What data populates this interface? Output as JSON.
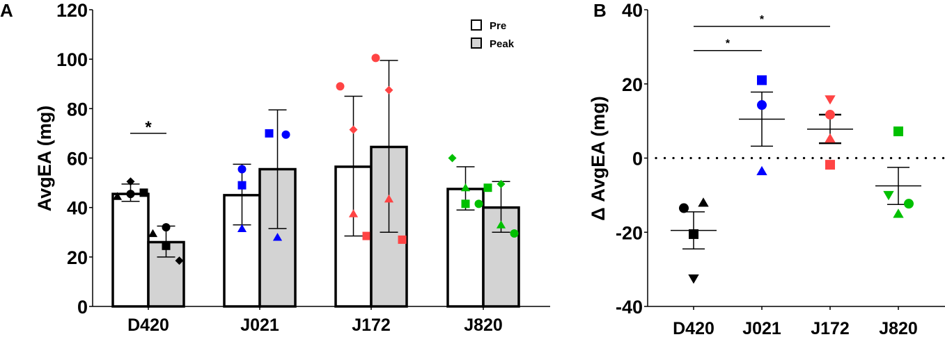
{
  "chart_data": [
    {
      "panel": "A",
      "type": "bar",
      "title": "",
      "xlabel": "",
      "ylabel": "AvgEA (mg)",
      "ylim": [
        0,
        120
      ],
      "yticks": [
        0,
        20,
        40,
        60,
        80,
        100,
        120
      ],
      "categories": [
        "D420",
        "J021",
        "J172",
        "J820"
      ],
      "legend": {
        "position": "top-right",
        "entries": [
          {
            "name": "Pre",
            "fill": "#ffffff"
          },
          {
            "name": "Peak",
            "fill": "#d3d3d3"
          }
        ]
      },
      "series": [
        {
          "name": "Pre",
          "fill": "#ffffff",
          "values": [
            45.5,
            45,
            56.5,
            47.5
          ],
          "error_low": [
            42.5,
            33,
            28.5,
            39
          ],
          "error_high": [
            49.5,
            57.5,
            85,
            56.5
          ],
          "points": [
            [
              {
                "shape": "triangle",
                "y": 44.5
              },
              {
                "shape": "diamond",
                "y": 50.5
              },
              {
                "shape": "circle",
                "y": 45.5
              },
              {
                "shape": "square",
                "y": 46
              }
            ],
            [
              {
                "shape": "circle",
                "y": 55.5
              },
              {
                "shape": "square",
                "y": 49
              },
              {
                "shape": "triangle",
                "y": 31.5
              }
            ],
            [
              {
                "shape": "circle",
                "y": 89
              },
              {
                "shape": "diamond",
                "y": 71.5
              },
              {
                "shape": "triangle",
                "y": 37.5
              },
              {
                "shape": "square",
                "y": 28.5
              }
            ],
            [
              {
                "shape": "diamond",
                "y": 60
              },
              {
                "shape": "triangle",
                "y": 48
              },
              {
                "shape": "square",
                "y": 41.5
              },
              {
                "shape": "circle",
                "y": 41.5
              }
            ]
          ]
        },
        {
          "name": "Peak",
          "fill": "#d3d3d3",
          "values": [
            26,
            55.5,
            64.5,
            40
          ],
          "error_low": [
            20,
            31.5,
            30,
            30
          ],
          "error_high": [
            32.5,
            79.5,
            99.5,
            50.5
          ],
          "points": [
            [
              {
                "shape": "triangle",
                "y": 29.5
              },
              {
                "shape": "circle",
                "y": 32
              },
              {
                "shape": "square",
                "y": 24.5
              },
              {
                "shape": "diamond",
                "y": 18.5
              }
            ],
            [
              {
                "shape": "square",
                "y": 70
              },
              {
                "shape": "circle",
                "y": 69.5
              },
              {
                "shape": "triangle",
                "y": 28
              }
            ],
            [
              {
                "shape": "circle",
                "y": 100.5
              },
              {
                "shape": "diamond",
                "y": 87.5
              },
              {
                "shape": "triangle",
                "y": 43.5
              },
              {
                "shape": "square",
                "y": 27
              }
            ],
            [
              {
                "shape": "square",
                "y": 48
              },
              {
                "shape": "diamond",
                "y": 49.5
              },
              {
                "shape": "triangle",
                "y": 33
              },
              {
                "shape": "circle",
                "y": 29.5
              }
            ]
          ]
        }
      ],
      "group_colors": [
        "#000000",
        "#0000ff",
        "#ff4444",
        "#00c000"
      ],
      "significance": [
        {
          "category": "D420",
          "label": "*",
          "y": 70
        }
      ]
    },
    {
      "panel": "B",
      "type": "scatter",
      "title": "",
      "xlabel": "",
      "ylabel": "Δ AvgEA (mg)",
      "ylim": [
        -40,
        40
      ],
      "yticks": [
        -40,
        -20,
        0,
        20,
        40
      ],
      "categories": [
        "D420",
        "J021",
        "J172",
        "J820"
      ],
      "reference_line": {
        "y": 0,
        "style": "dotted"
      },
      "group_colors": [
        "#000000",
        "#0000ff",
        "#ff4444",
        "#00c000"
      ],
      "groups": [
        {
          "category": "D420",
          "mean": -19.5,
          "sem_low": -24.5,
          "sem_high": -14.5,
          "points": [
            {
              "shape": "circle",
              "y": -13.5
            },
            {
              "shape": "triangle",
              "y": -12
            },
            {
              "shape": "square",
              "y": -20.5
            },
            {
              "shape": "triangle-down",
              "y": -32.5
            }
          ]
        },
        {
          "category": "J021",
          "mean": 10.5,
          "sem_low": 3.2,
          "sem_high": 17.8,
          "points": [
            {
              "shape": "square",
              "y": 21
            },
            {
              "shape": "circle",
              "y": 14.3
            },
            {
              "shape": "triangle",
              "y": -3.5
            }
          ]
        },
        {
          "category": "J172",
          "mean": 7.8,
          "sem_low": 4,
          "sem_high": 11.7,
          "points": [
            {
              "shape": "triangle-down",
              "y": 15.8
            },
            {
              "shape": "circle",
              "y": 11.7
            },
            {
              "shape": "triangle",
              "y": 5.3
            },
            {
              "shape": "square",
              "y": -1.8
            }
          ]
        },
        {
          "category": "J820",
          "mean": -7.5,
          "sem_low": -12.5,
          "sem_high": -2.5,
          "points": [
            {
              "shape": "square",
              "y": 7.2
            },
            {
              "shape": "triangle-down",
              "y": -10
            },
            {
              "shape": "circle",
              "y": -12.3
            },
            {
              "shape": "triangle",
              "y": -15
            }
          ]
        }
      ],
      "significance": [
        {
          "from": "D420",
          "to": "J021",
          "label": "*",
          "y": 29
        },
        {
          "from": "D420",
          "to": "J172",
          "label": "*",
          "y": 35.5
        }
      ]
    }
  ],
  "panels": {
    "A": {
      "letter": "A"
    },
    "B": {
      "letter": "B"
    }
  }
}
